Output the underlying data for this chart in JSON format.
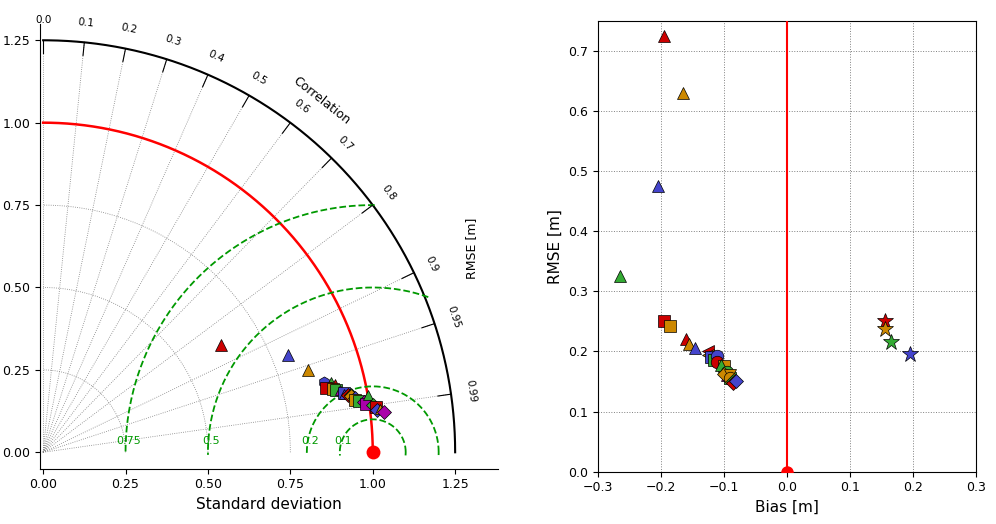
{
  "taylor_points": [
    {
      "std": 0.63,
      "corr": 0.855,
      "marker": "^",
      "color": "#cc0000",
      "ms": 8
    },
    {
      "std": 0.8,
      "corr": 0.93,
      "marker": "^",
      "color": "#4444cc",
      "ms": 8
    },
    {
      "std": 0.84,
      "corr": 0.955,
      "marker": "^",
      "color": "#cc8800",
      "ms": 8
    },
    {
      "std": 0.88,
      "corr": 0.97,
      "marker": "h",
      "color": "#4444cc",
      "ms": 8
    },
    {
      "std": 0.9,
      "corr": 0.972,
      "marker": "^",
      "color": "#33aa33",
      "ms": 8
    },
    {
      "std": 0.91,
      "corr": 0.974,
      "marker": "^",
      "color": "#cc0000",
      "ms": 7
    },
    {
      "std": 0.88,
      "corr": 0.975,
      "marker": "s",
      "color": "#cc0000",
      "ms": 8
    },
    {
      "std": 0.9,
      "corr": 0.977,
      "marker": "s",
      "color": "#cc8800",
      "ms": 8
    },
    {
      "std": 0.91,
      "corr": 0.978,
      "marker": "s",
      "color": "#33aa33",
      "ms": 8
    },
    {
      "std": 0.92,
      "corr": 0.979,
      "marker": "^",
      "color": "#aa00aa",
      "ms": 7
    },
    {
      "std": 0.93,
      "corr": 0.981,
      "marker": "s",
      "color": "#4444cc",
      "ms": 8
    },
    {
      "std": 0.93,
      "corr": 0.982,
      "marker": "^",
      "color": "#4444cc",
      "ms": 7
    },
    {
      "std": 0.94,
      "corr": 0.983,
      "marker": "D",
      "color": "#cc0000",
      "ms": 7
    },
    {
      "std": 0.95,
      "corr": 0.983,
      "marker": "D",
      "color": "#33aa33",
      "ms": 7
    },
    {
      "std": 0.95,
      "corr": 0.984,
      "marker": "D",
      "color": "#cc8800",
      "ms": 7
    },
    {
      "std": 0.96,
      "corr": 0.985,
      "marker": "D",
      "color": "#4444cc",
      "ms": 7
    },
    {
      "std": 0.96,
      "corr": 0.986,
      "marker": "s",
      "color": "#cc8800",
      "ms": 8
    },
    {
      "std": 0.97,
      "corr": 0.987,
      "marker": "s",
      "color": "#33aa33",
      "ms": 8
    },
    {
      "std": 0.985,
      "corr": 0.988,
      "marker": "D",
      "color": "#aa00aa",
      "ms": 7
    },
    {
      "std": 0.99,
      "corr": 0.989,
      "marker": "s",
      "color": "#aa00aa",
      "ms": 8
    },
    {
      "std": 1.0,
      "corr": 0.985,
      "marker": "^",
      "color": "#33aa33",
      "ms": 7
    },
    {
      "std": 1.01,
      "corr": 0.99,
      "marker": "D",
      "color": "#33aa33",
      "ms": 7
    },
    {
      "std": 1.02,
      "corr": 0.991,
      "marker": "s",
      "color": "#cc0000",
      "ms": 8
    },
    {
      "std": 1.02,
      "corr": 0.992,
      "marker": "D",
      "color": "#4444cc",
      "ms": 7
    },
    {
      "std": 1.03,
      "corr": 0.992,
      "marker": "^",
      "color": "#cc8800",
      "ms": 7
    },
    {
      "std": 1.04,
      "corr": 0.993,
      "marker": "D",
      "color": "#aa00aa",
      "ms": 7
    }
  ],
  "bias_rmse_points": [
    {
      "bias": -0.195,
      "rmse": 0.725,
      "marker": "^",
      "color": "#cc0000",
      "ms": 9
    },
    {
      "bias": -0.165,
      "rmse": 0.63,
      "marker": "^",
      "color": "#cc8800",
      "ms": 9
    },
    {
      "bias": -0.205,
      "rmse": 0.475,
      "marker": "^",
      "color": "#4444cc",
      "ms": 9
    },
    {
      "bias": -0.265,
      "rmse": 0.325,
      "marker": "^",
      "color": "#33aa33",
      "ms": 9
    },
    {
      "bias": -0.195,
      "rmse": 0.25,
      "marker": "s",
      "color": "#cc0000",
      "ms": 9
    },
    {
      "bias": -0.185,
      "rmse": 0.242,
      "marker": "s",
      "color": "#cc8800",
      "ms": 9
    },
    {
      "bias": -0.16,
      "rmse": 0.22,
      "marker": "^",
      "color": "#cc0000",
      "ms": 8
    },
    {
      "bias": -0.155,
      "rmse": 0.213,
      "marker": "^",
      "color": "#cc8800",
      "ms": 8
    },
    {
      "bias": -0.145,
      "rmse": 0.205,
      "marker": "^",
      "color": "#4444cc",
      "ms": 8
    },
    {
      "bias": -0.125,
      "rmse": 0.2,
      "marker": "<",
      "color": "#cc0000",
      "ms": 8
    },
    {
      "bias": -0.125,
      "rmse": 0.194,
      "marker": "<",
      "color": "#cc8800",
      "ms": 8
    },
    {
      "bias": -0.12,
      "rmse": 0.19,
      "marker": "s",
      "color": "#4444cc",
      "ms": 9
    },
    {
      "bias": -0.115,
      "rmse": 0.185,
      "marker": "s",
      "color": "#33aa33",
      "ms": 9
    },
    {
      "bias": -0.11,
      "rmse": 0.192,
      "marker": "o",
      "color": "#4444cc",
      "ms": 9
    },
    {
      "bias": -0.11,
      "rmse": 0.183,
      "marker": "o",
      "color": "#cc0000",
      "ms": 9
    },
    {
      "bias": -0.1,
      "rmse": 0.175,
      "marker": "s",
      "color": "#cc8800",
      "ms": 9
    },
    {
      "bias": -0.105,
      "rmse": 0.178,
      "marker": "^",
      "color": "#33aa33",
      "ms": 8
    },
    {
      "bias": -0.095,
      "rmse": 0.165,
      "marker": "o",
      "color": "#33aa33",
      "ms": 9
    },
    {
      "bias": -0.09,
      "rmse": 0.155,
      "marker": "s",
      "color": "#33aa33",
      "ms": 9
    },
    {
      "bias": -0.095,
      "rmse": 0.16,
      "marker": "^",
      "color": "#aa00aa",
      "ms": 8
    },
    {
      "bias": -0.1,
      "rmse": 0.163,
      "marker": "D",
      "color": "#cc8800",
      "ms": 7
    },
    {
      "bias": -0.09,
      "rmse": 0.161,
      "marker": "v",
      "color": "#cc8800",
      "ms": 8
    },
    {
      "bias": -0.09,
      "rmse": 0.155,
      "marker": "o",
      "color": "#cc8800",
      "ms": 9
    },
    {
      "bias": -0.085,
      "rmse": 0.15,
      "marker": "D",
      "color": "#33aa33",
      "ms": 7
    },
    {
      "bias": -0.085,
      "rmse": 0.147,
      "marker": "D",
      "color": "#cc0000",
      "ms": 7
    },
    {
      "bias": -0.08,
      "rmse": 0.15,
      "marker": "D",
      "color": "#4444cc",
      "ms": 7
    },
    {
      "bias": 0.155,
      "rmse": 0.25,
      "marker": "*",
      "color": "#cc0000",
      "ms": 12
    },
    {
      "bias": 0.155,
      "rmse": 0.238,
      "marker": "*",
      "color": "#cc8800",
      "ms": 12
    },
    {
      "bias": 0.165,
      "rmse": 0.215,
      "marker": "*",
      "color": "#33aa33",
      "ms": 12
    },
    {
      "bias": 0.195,
      "rmse": 0.195,
      "marker": "*",
      "color": "#4444cc",
      "ms": 12
    }
  ],
  "std_circles": [
    0.25,
    0.5,
    0.75,
    1.0,
    1.25
  ],
  "skill_circles": [
    0.1,
    0.2,
    0.5,
    0.75
  ],
  "skill_circle_labels": [
    "0.1",
    "0.2",
    "0.5",
    "0.75"
  ],
  "corr_lines": [
    0.0,
    0.1,
    0.2,
    0.3,
    0.4,
    0.5,
    0.6,
    0.7,
    0.8,
    0.9,
    0.95,
    0.99
  ],
  "corr_label_vals": [
    0.0,
    0.1,
    0.2,
    0.3,
    0.4,
    0.5,
    0.6,
    0.7,
    0.8,
    0.9,
    0.95,
    0.99
  ],
  "bias_xlim": [
    -0.3,
    0.3
  ],
  "bias_ylim": [
    0.0,
    0.75
  ],
  "xlabel_taylor": "Standard deviation",
  "xlabel_bias": "Bias [m]",
  "ylabel_bias": "RMSE [m]",
  "corr_label": "Correlation"
}
